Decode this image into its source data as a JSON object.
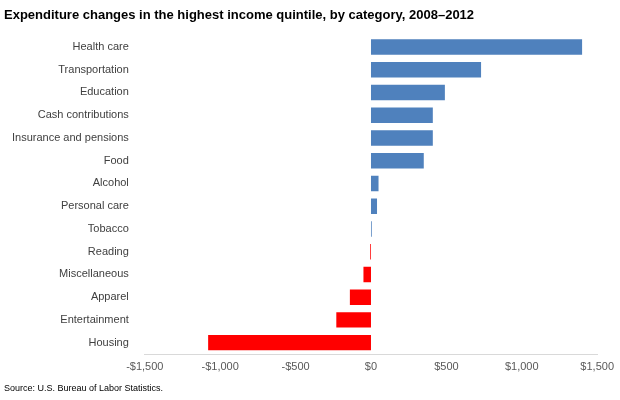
{
  "chart_data": {
    "type": "bar",
    "orientation": "horizontal",
    "title": "Expenditure changes in the highest income quintile, by category, 2008–2012",
    "source": "Source: U.S. Bureau of Labor Statistics.",
    "categories": [
      "Health care",
      "Transportation",
      "Education",
      "Cash contributions",
      "Insurance and pensions",
      "Food",
      "Alcohol",
      "Personal care",
      "Tobacco",
      "Reading",
      "Miscellaneous",
      "Apparel",
      "Entertainment",
      "Housing"
    ],
    "values": [
      1400,
      730,
      490,
      410,
      410,
      350,
      50,
      40,
      5,
      -5,
      -50,
      -140,
      -230,
      -1080
    ],
    "colors": [
      "#4f81bd",
      "#4f81bd",
      "#4f81bd",
      "#4f81bd",
      "#4f81bd",
      "#4f81bd",
      "#4f81bd",
      "#4f81bd",
      "#4f81bd",
      "#ff0000",
      "#ff0000",
      "#ff0000",
      "#ff0000",
      "#ff0000"
    ],
    "xlim": [
      -1500,
      1500
    ],
    "xticks": [
      {
        "value": -1500,
        "label": "-$1,500"
      },
      {
        "value": -1000,
        "label": "-$1,000"
      },
      {
        "value": -500,
        "label": "-$500"
      },
      {
        "value": 0,
        "label": "$0"
      },
      {
        "value": 500,
        "label": "$500"
      },
      {
        "value": 1000,
        "label": "$1,000"
      },
      {
        "value": 1500,
        "label": "$1,500"
      }
    ],
    "grid": false
  }
}
